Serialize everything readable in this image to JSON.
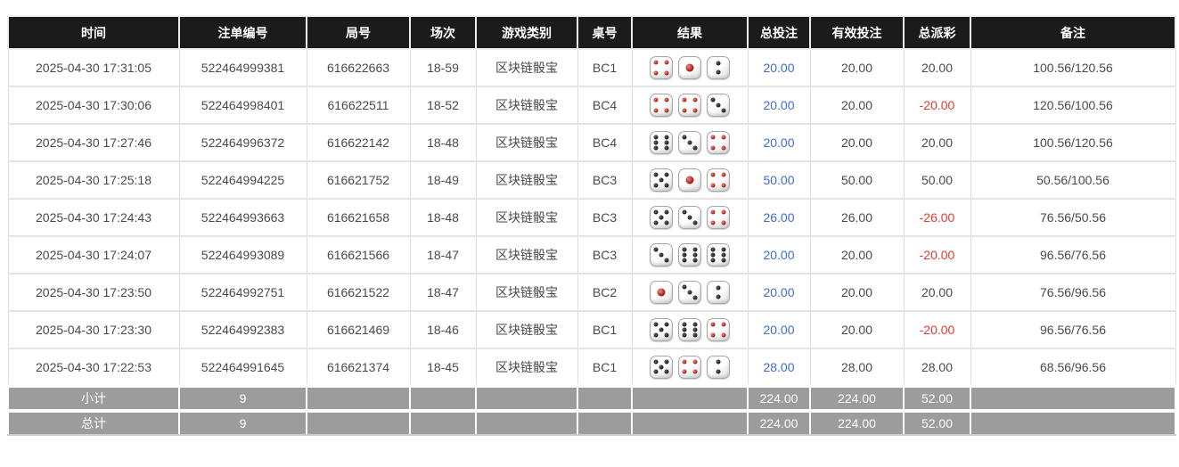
{
  "colors": {
    "header_bg": "#1b1b1b",
    "footer_bg": "#9c9c9c",
    "bet_amount_blue": "#3e6cd5",
    "negative_red": "#e43a2e",
    "body_text": "#4a4a4a",
    "cell_border": "#dddddd",
    "pip_red": "#9d1410",
    "pip_black": "#141414"
  },
  "table": {
    "columns": [
      {
        "key": "time",
        "label": "时间"
      },
      {
        "key": "bet_id",
        "label": "注单编号"
      },
      {
        "key": "round_id",
        "label": "局号"
      },
      {
        "key": "session",
        "label": "场次"
      },
      {
        "key": "game_type",
        "label": "游戏类别"
      },
      {
        "key": "table_no",
        "label": "桌号"
      },
      {
        "key": "result",
        "label": "结果"
      },
      {
        "key": "total_bet",
        "label": "总投注"
      },
      {
        "key": "valid_bet",
        "label": "有效投注"
      },
      {
        "key": "total_payout",
        "label": "总派彩"
      },
      {
        "key": "remark",
        "label": "备注"
      }
    ],
    "rows": [
      {
        "time": "2025-04-30 17:31:05",
        "bet_id": "522464999381",
        "round_id": "616622663",
        "session": "18-59",
        "game_type": "区块链骰宝",
        "table_no": "BC1",
        "dice": [
          4,
          1,
          2
        ],
        "total_bet": "20.00",
        "valid_bet": "20.00",
        "total_payout": "20.00",
        "payout_negative": false,
        "remark": "100.56/120.56"
      },
      {
        "time": "2025-04-30 17:30:06",
        "bet_id": "522464998401",
        "round_id": "616622511",
        "session": "18-52",
        "game_type": "区块链骰宝",
        "table_no": "BC4",
        "dice": [
          4,
          4,
          3
        ],
        "total_bet": "20.00",
        "valid_bet": "20.00",
        "total_payout": "-20.00",
        "payout_negative": true,
        "remark": "120.56/100.56"
      },
      {
        "time": "2025-04-30 17:27:46",
        "bet_id": "522464996372",
        "round_id": "616622142",
        "session": "18-48",
        "game_type": "区块链骰宝",
        "table_no": "BC4",
        "dice": [
          6,
          3,
          4
        ],
        "total_bet": "20.00",
        "valid_bet": "20.00",
        "total_payout": "20.00",
        "payout_negative": false,
        "remark": "100.56/120.56"
      },
      {
        "time": "2025-04-30 17:25:18",
        "bet_id": "522464994225",
        "round_id": "616621752",
        "session": "18-49",
        "game_type": "区块链骰宝",
        "table_no": "BC3",
        "dice": [
          5,
          1,
          4
        ],
        "total_bet": "50.00",
        "valid_bet": "50.00",
        "total_payout": "50.00",
        "payout_negative": false,
        "remark": "50.56/100.56"
      },
      {
        "time": "2025-04-30 17:24:43",
        "bet_id": "522464993663",
        "round_id": "616621658",
        "session": "18-48",
        "game_type": "区块链骰宝",
        "table_no": "BC3",
        "dice": [
          5,
          3,
          4
        ],
        "total_bet": "26.00",
        "valid_bet": "26.00",
        "total_payout": "-26.00",
        "payout_negative": true,
        "remark": "76.56/50.56"
      },
      {
        "time": "2025-04-30 17:24:07",
        "bet_id": "522464993089",
        "round_id": "616621566",
        "session": "18-47",
        "game_type": "区块链骰宝",
        "table_no": "BC3",
        "dice": [
          3,
          6,
          6
        ],
        "total_bet": "20.00",
        "valid_bet": "20.00",
        "total_payout": "-20.00",
        "payout_negative": true,
        "remark": "96.56/76.56"
      },
      {
        "time": "2025-04-30 17:23:50",
        "bet_id": "522464992751",
        "round_id": "616621522",
        "session": "18-47",
        "game_type": "区块链骰宝",
        "table_no": "BC2",
        "dice": [
          1,
          3,
          2
        ],
        "total_bet": "20.00",
        "valid_bet": "20.00",
        "total_payout": "20.00",
        "payout_negative": false,
        "remark": "76.56/96.56"
      },
      {
        "time": "2025-04-30 17:23:30",
        "bet_id": "522464992383",
        "round_id": "616621469",
        "session": "18-46",
        "game_type": "区块链骰宝",
        "table_no": "BC1",
        "dice": [
          5,
          6,
          4
        ],
        "total_bet": "20.00",
        "valid_bet": "20.00",
        "total_payout": "-20.00",
        "payout_negative": true,
        "remark": "96.56/76.56"
      },
      {
        "time": "2025-04-30 17:22:53",
        "bet_id": "522464991645",
        "round_id": "616621374",
        "session": "18-45",
        "game_type": "区块链骰宝",
        "table_no": "BC1",
        "dice": [
          5,
          4,
          2
        ],
        "total_bet": "28.00",
        "valid_bet": "28.00",
        "total_payout": "28.00",
        "payout_negative": false,
        "remark": "68.56/96.56"
      }
    ],
    "footer": [
      {
        "label": "小计",
        "count": "9",
        "total_bet": "224.00",
        "valid_bet": "224.00",
        "total_payout": "52.00"
      },
      {
        "label": "总计",
        "count": "9",
        "total_bet": "224.00",
        "valid_bet": "224.00",
        "total_payout": "52.00"
      }
    ]
  }
}
